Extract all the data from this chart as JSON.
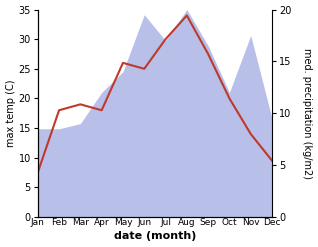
{
  "months": [
    1,
    2,
    3,
    4,
    5,
    6,
    7,
    8,
    9,
    10,
    11,
    12
  ],
  "month_labels": [
    "Jan",
    "Feb",
    "Mar",
    "Apr",
    "May",
    "Jun",
    "Jul",
    "Aug",
    "Sep",
    "Oct",
    "Nov",
    "Dec"
  ],
  "max_temp": [
    7.5,
    18.0,
    19.0,
    18.0,
    26.0,
    25.0,
    30.0,
    34.0,
    27.5,
    20.0,
    14.0,
    9.5
  ],
  "precipitation": [
    8.5,
    8.5,
    9.0,
    12.0,
    14.0,
    19.5,
    17.0,
    20.0,
    16.5,
    12.0,
    17.5,
    9.5
  ],
  "temp_color": "#c0392b",
  "precip_fill_color": "#b8bfe8",
  "temp_ylim": [
    0,
    35
  ],
  "precip_scale": 1.75,
  "right_yticks": [
    0,
    5,
    10,
    15,
    20
  ],
  "xlabel": "date (month)",
  "ylabel_left": "max temp (C)",
  "ylabel_right": "med. precipitation (kg/m2)",
  "background_color": "#ffffff",
  "fig_width": 3.18,
  "fig_height": 2.47,
  "dpi": 100
}
